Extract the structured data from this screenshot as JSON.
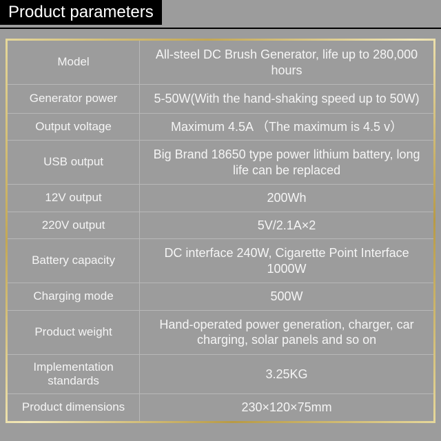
{
  "title": "Product parameters",
  "colors": {
    "page_bg": "#9c9c9c",
    "header_bg": "#000000",
    "header_text": "#ffffff",
    "cell_text": "#f5f5f5",
    "cell_border": "#b8b8b8",
    "gold_gradient_stops": [
      "#e6d89b",
      "#c4a854",
      "#f2e8b8",
      "#b89a45",
      "#e6d89b"
    ]
  },
  "table": {
    "type": "table",
    "column_widths": [
      "31%",
      "69%"
    ],
    "label_fontsize": 17,
    "value_fontsize": 18,
    "rows": [
      {
        "label": "Model",
        "value": "All-steel DC Brush Generator, life up to 280,000 hours"
      },
      {
        "label": "Generator power",
        "value": "5-50W(With the hand-shaking speed up to 50W)"
      },
      {
        "label": "Output voltage",
        "value": "Maximum 4.5A （The maximum is 4.5 v）"
      },
      {
        "label": "USB output",
        "value": "Big Brand 18650 type power lithium battery, long life can be replaced"
      },
      {
        "label": "12V output",
        "value": "200Wh"
      },
      {
        "label": "220V output",
        "value": "5V/2.1A×2"
      },
      {
        "label": "Battery capacity",
        "value": "DC interface 240W, Cigarette Point Interface 1000W"
      },
      {
        "label": "Charging mode",
        "value": "500W"
      },
      {
        "label": "Product weight",
        "value": "Hand-operated power generation, charger, car charging, solar panels and so on"
      },
      {
        "label": "Implementation standards",
        "value": "3.25KG"
      },
      {
        "label": "Product dimensions",
        "value": "230×120×75mm"
      }
    ]
  }
}
